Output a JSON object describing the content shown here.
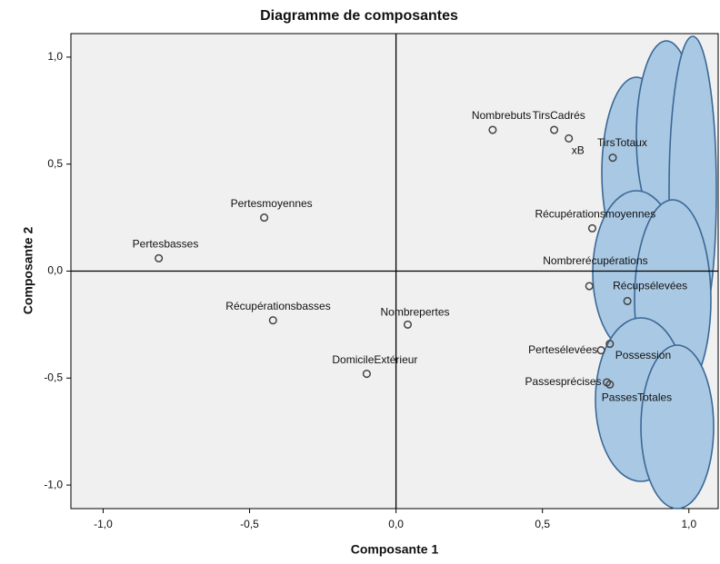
{
  "chart_data": {
    "type": "scatter",
    "title": "Diagramme de composantes",
    "x_label": "Composante 1",
    "y_label": "Composante 2",
    "xlim": [
      -1.11,
      1.1
    ],
    "ylim": [
      -1.11,
      1.11
    ],
    "xticks": [
      {
        "value": -1.0,
        "label": "-1,0"
      },
      {
        "value": -0.5,
        "label": "-0,5"
      },
      {
        "value": 0,
        "label": "0,0"
      },
      {
        "value": 0.5,
        "label": "0,5"
      },
      {
        "value": 1.0,
        "label": "1,0"
      }
    ],
    "yticks": [
      {
        "value": -1.0,
        "label": "-1,0"
      },
      {
        "value": -0.5,
        "label": "-0,5"
      },
      {
        "value": 0,
        "label": "0,0"
      },
      {
        "value": 0.5,
        "label": "0,5"
      },
      {
        "value": 1.0,
        "label": "1,0"
      }
    ],
    "series": [
      {
        "color": "#444444",
        "labels": [
          "Nombrebuts",
          "TirsCadrés",
          "xB",
          "TirsTotaux",
          "Récupérationsmoyennes",
          "Nombrerécupérations",
          "Récupsélevées",
          "Possession",
          "Pertesélevées",
          "Passesprécises",
          "PassesTotales",
          "Pertesmoyennes",
          "Pertesbasses",
          "Récupérationsbasses",
          "Nombrepertes",
          "DomicileExtérieur"
        ],
        "x": [
          0.33,
          0.54,
          0.59,
          0.74,
          0.67,
          0.66,
          0.79,
          0.73,
          0.7,
          0.72,
          0.73,
          -0.45,
          -0.81,
          -0.42,
          0.04,
          -0.1
        ],
        "values": [
          0.66,
          0.66,
          0.62,
          0.53,
          0.2,
          -0.07,
          -0.14,
          -0.34,
          -0.37,
          -0.52,
          -0.53,
          0.25,
          0.06,
          -0.23,
          -0.25,
          -0.48
        ]
      }
    ]
  }
}
